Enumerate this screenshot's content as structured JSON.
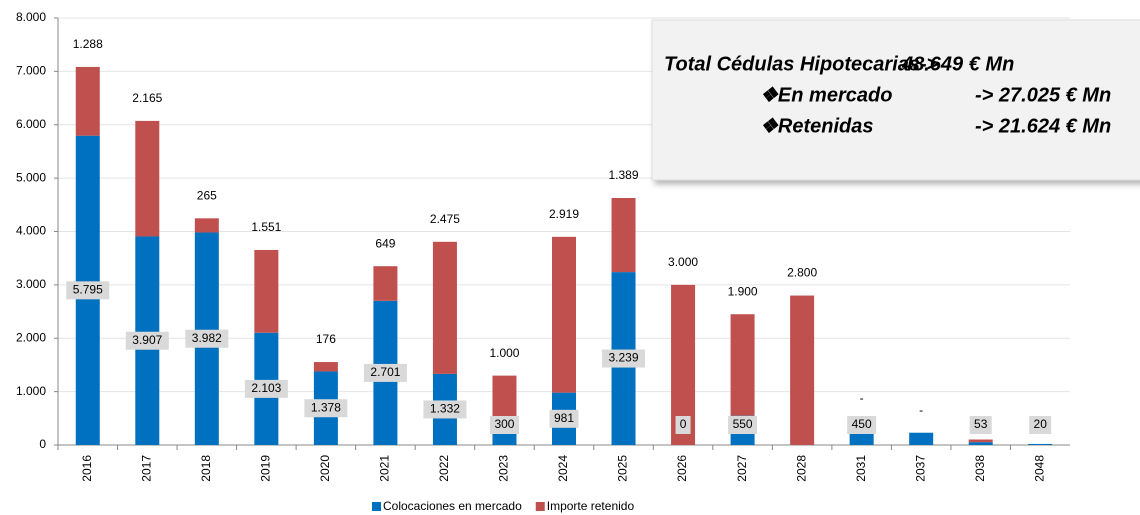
{
  "chart_data": {
    "type": "stacked-bar",
    "categories": [
      "2016",
      "2017",
      "2018",
      "2019",
      "2020",
      "2021",
      "2022",
      "2023",
      "2024",
      "2025",
      "2026",
      "2027",
      "2028",
      "2031",
      "2037",
      "2038",
      "2048"
    ],
    "series": [
      {
        "name": "Colocaciones en mercado",
        "color": "#0070c0",
        "values": [
          5795,
          3907,
          3982,
          2103,
          1378,
          2701,
          1332,
          300,
          981,
          3239,
          0,
          550,
          0,
          450,
          230,
          53,
          20
        ],
        "value_labels": [
          "5.795",
          "3.907",
          "3.982",
          "2.103",
          "1.378",
          "2.701",
          "1.332",
          "300",
          "981",
          "3.239",
          "0",
          "550",
          null,
          "450",
          null,
          "53",
          "20"
        ]
      },
      {
        "name": "Importe retenido",
        "color": "#c0504d",
        "values": [
          1288,
          2165,
          265,
          1551,
          176,
          649,
          2475,
          1000,
          2919,
          1389,
          3000,
          1900,
          2800,
          0,
          0,
          50,
          0
        ],
        "value_labels": [
          "1.288",
          "2.165",
          "265",
          "1.551",
          "176",
          "649",
          "2.475",
          "1.000",
          "2.919",
          "1.389",
          "3.000",
          "1.900",
          "2.800",
          "-",
          "-",
          null,
          null
        ]
      }
    ],
    "ylim": [
      0,
      8000
    ],
    "yticks": [
      0,
      {
        "value": 1000,
        "label": "1.000"
      },
      {
        "value": 2000,
        "label": "2.000"
      },
      {
        "value": 3000,
        "label": "3.000"
      },
      {
        "value": 4000,
        "label": "4.000"
      },
      {
        "value": 5000,
        "label": "5.000"
      },
      {
        "value": 6000,
        "label": "6.000"
      },
      {
        "value": 7000,
        "label": "7.000"
      },
      {
        "value": 8000,
        "label": "8.000"
      }
    ],
    "grid": true,
    "annotation": [
      [
        "Total Cédulas Hipotecarias->",
        "48.649 € Mn"
      ],
      [
        "❖En mercado",
        "-> 27.025 € Mn"
      ],
      [
        "❖Retenidas",
        "-> 21.624 € Mn"
      ]
    ]
  }
}
